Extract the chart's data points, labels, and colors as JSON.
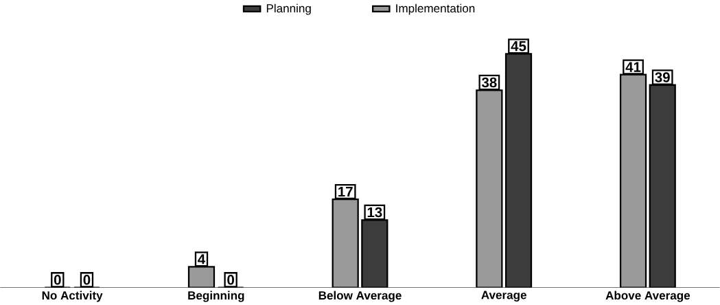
{
  "chart_data": {
    "type": "bar",
    "categories": [
      "No Activity",
      "Beginning",
      "Below Average",
      "Average",
      "Above Average"
    ],
    "series": [
      {
        "name": "Planning",
        "color": "#3c3c3c",
        "values": [
          0,
          0,
          13,
          45,
          39
        ]
      },
      {
        "name": "Implementation",
        "color": "#9a9a9a",
        "values": [
          0,
          4,
          17,
          38,
          41
        ]
      }
    ],
    "data_labels": true,
    "legend": "top"
  }
}
